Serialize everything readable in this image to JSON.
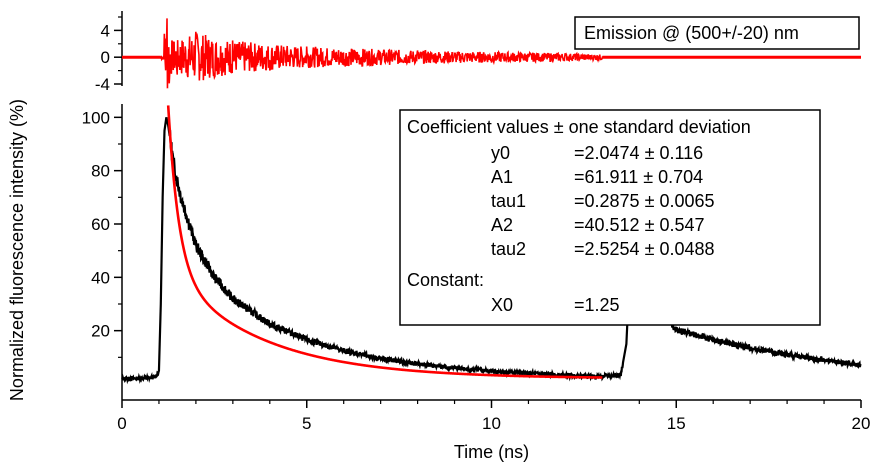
{
  "chart_data": [
    {
      "type": "line",
      "panel": "residuals",
      "xlim": [
        0,
        20
      ],
      "ylim": [
        -4,
        6
      ],
      "yticks": [
        4,
        0,
        -4
      ],
      "ytick_labels": [
        "4",
        "0",
        "-4"
      ],
      "xlabel": "",
      "ylabel": "",
      "legend_text": "Emission @ (500+/-20) nm",
      "legend_placement": "top-right",
      "grid": false,
      "series": [
        {
          "color": "#ff0000",
          "segments": [
            {
              "x": [
                0,
                1.05
              ],
              "y": [
                0,
                0
              ],
              "kind": "flat"
            },
            {
              "x_start": 1.05,
              "x_end": 13.0,
              "kind": "noise",
              "samples": [
                [
                  1.15,
                  3.5
                ],
                [
                  1.22,
                  5.8
                ],
                [
                  1.28,
                  -3.9
                ],
                [
                  1.35,
                  2.5
                ],
                [
                  1.5,
                  -2.6
                ],
                [
                  2.0,
                  3.8
                ],
                [
                  2.5,
                  -3.0
                ],
                [
                  3.0,
                  2.5
                ],
                [
                  4.0,
                  -2.0
                ],
                [
                  5.0,
                  1.6
                ],
                [
                  6.5,
                  -1.3
                ],
                [
                  8.0,
                  1.0
                ],
                [
                  10.0,
                  -0.8
                ],
                [
                  12.0,
                  0.6
                ],
                [
                  13.0,
                  -0.4
                ]
              ]
            },
            {
              "x": [
                13.0,
                20
              ],
              "y": [
                0,
                0
              ],
              "kind": "flat"
            }
          ]
        }
      ]
    },
    {
      "type": "line",
      "panel": "main",
      "xlim": [
        0,
        20
      ],
      "ylim": [
        0,
        105
      ],
      "xticks": [
        0,
        5,
        10,
        15,
        20
      ],
      "xtick_labels": [
        "0",
        "5",
        "10",
        "15",
        "20"
      ],
      "yticks": [
        20,
        40,
        60,
        80,
        100
      ],
      "ytick_labels": [
        "20",
        "40",
        "60",
        "80",
        "100"
      ],
      "xlabel": "Time (ns)",
      "ylabel": "Normalized fluorescence intensity (%)",
      "grid": false,
      "series": [
        {
          "kind": "measured",
          "color": "#000000",
          "points": [
            [
              0.0,
              2.0
            ],
            [
              0.5,
              2.1
            ],
            [
              0.9,
              2.5
            ],
            [
              1.0,
              5.0
            ],
            [
              1.05,
              30.0
            ],
            [
              1.1,
              70.0
            ],
            [
              1.15,
              95.0
            ],
            [
              1.2,
              100.0
            ],
            [
              1.25,
              97.0
            ],
            [
              1.4,
              82.0
            ],
            [
              1.6,
              70.0
            ],
            [
              2.0,
              52.0
            ],
            [
              2.5,
              40.0
            ],
            [
              3.0,
              32.0
            ],
            [
              4.0,
              22.5
            ],
            [
              5.0,
              16.5
            ],
            [
              6.0,
              12.5
            ],
            [
              7.0,
              9.5
            ],
            [
              8.0,
              7.5
            ],
            [
              9.0,
              6.0
            ],
            [
              10.0,
              4.8
            ],
            [
              11.0,
              4.0
            ],
            [
              12.0,
              3.2
            ],
            [
              13.0,
              2.8
            ],
            [
              13.5,
              3.5
            ],
            [
              13.65,
              15.0
            ],
            [
              13.75,
              45.0
            ],
            [
              14.0,
              35.0
            ],
            [
              15.0,
              20.5
            ],
            [
              16.0,
              16.5
            ],
            [
              17.0,
              13.5
            ],
            [
              18.0,
              11.0
            ],
            [
              19.0,
              9.0
            ],
            [
              20.0,
              7.0
            ]
          ]
        },
        {
          "kind": "fit",
          "color": "#ff0000",
          "model": "y0 + A1*exp(-(x-X0)/tau1) + A2*exp(-(x-X0)/tau2)",
          "params": {
            "y0": 2.0474,
            "A1": 61.911,
            "tau1": 0.2875,
            "A2": 40.512,
            "tau2": 2.5254,
            "X0": 1.25
          },
          "x_range": [
            1.25,
            13.0
          ]
        }
      ],
      "annotation": {
        "title": "Coefficient values ± one standard deviation",
        "rows": [
          {
            "name": "y0",
            "value": "=2.0474 ± 0.116"
          },
          {
            "name": "A1",
            "value": "=61.911 ± 0.704"
          },
          {
            "name": "tau1",
            "value": "=0.2875 ± 0.0065"
          },
          {
            "name": "A2",
            "value": "=40.512 ± 0.547"
          },
          {
            "name": "tau2",
            "value": "=2.5254 ± 0.0488"
          }
        ],
        "constant_label": "Constant:",
        "constant_rows": [
          {
            "name": "X0",
            "value": "=1.25"
          }
        ]
      }
    }
  ]
}
